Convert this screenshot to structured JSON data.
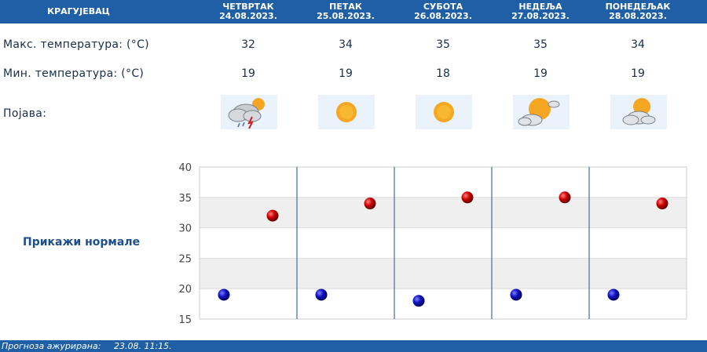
{
  "header": {
    "city": "КРАГУЈЕВАЦ",
    "days": [
      {
        "name": "ЧЕТВРТАК",
        "date": "24.08.2023."
      },
      {
        "name": "ПЕТАК",
        "date": "25.08.2023."
      },
      {
        "name": "СУБОТА",
        "date": "26.08.2023."
      },
      {
        "name": "НЕДЕЉА",
        "date": "27.08.2023."
      },
      {
        "name": "ПОНЕДЕЉАК",
        "date": "28.08.2023."
      }
    ]
  },
  "rows": {
    "max_label": "Макс. температура: (°C)",
    "min_label": "Мин. температура: (°C)",
    "weather_label": "Појава:",
    "max": [
      "32",
      "34",
      "35",
      "35",
      "34"
    ],
    "min": [
      "19",
      "19",
      "18",
      "19",
      "19"
    ],
    "icons": [
      "storm-sun-cloud-icon",
      "sun-icon",
      "sun-icon",
      "sun-cloud-icon",
      "sun-cloud-icon"
    ]
  },
  "normals_link": "Прикажи нормале",
  "footer": {
    "label": "Прогноза ажурирана:",
    "time": "23.08.  11:15."
  },
  "colors": {
    "header_bg": "#1f5fa6",
    "max_dot": "#c40000",
    "min_dot": "#0a0ab0"
  },
  "chart_data": {
    "type": "scatter",
    "categories": [
      "24.08.2023.",
      "25.08.2023.",
      "26.08.2023.",
      "27.08.2023.",
      "28.08.2023."
    ],
    "series": [
      {
        "values": [
          19,
          19,
          18,
          19,
          19
        ]
      },
      {
        "values": [
          32,
          34,
          35,
          35,
          34
        ]
      }
    ],
    "ylim": [
      15,
      40
    ],
    "yticks": [
      "15",
      "20",
      "25",
      "30",
      "35",
      "40"
    ],
    "grid": true
  }
}
